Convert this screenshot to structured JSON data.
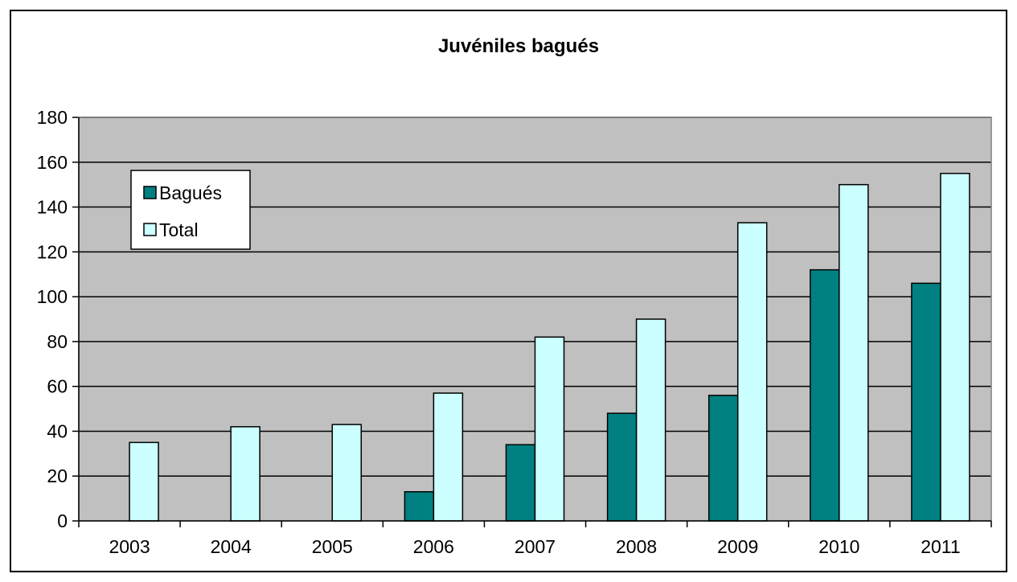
{
  "chart_data": {
    "type": "bar",
    "title": "Juvéniles bagués",
    "xlabel": "",
    "ylabel": "",
    "categories": [
      "2003",
      "2004",
      "2005",
      "2006",
      "2007",
      "2008",
      "2009",
      "2010",
      "2011"
    ],
    "series": [
      {
        "name": "Bagués",
        "color": "#008080",
        "values": [
          0,
          0,
          0,
          13,
          34,
          48,
          56,
          112,
          106
        ]
      },
      {
        "name": "Total",
        "color": "#CCFFFF",
        "values": [
          35,
          42,
          43,
          57,
          82,
          90,
          133,
          150,
          155
        ]
      }
    ],
    "ylim": [
      0,
      180
    ],
    "yticks": [
      0,
      20,
      40,
      60,
      80,
      100,
      120,
      140,
      160,
      180
    ],
    "grid": true,
    "plot_background": "#C0C0C0",
    "legend_position": "top-left"
  }
}
